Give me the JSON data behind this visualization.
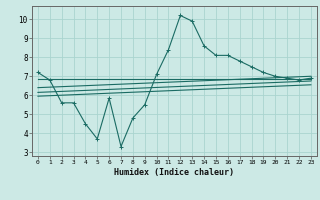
{
  "title": "",
  "xlabel": "Humidex (Indice chaleur)",
  "ylabel": "",
  "bg_color": "#cce9e5",
  "grid_color": "#aad4cf",
  "line_color": "#1a6b63",
  "xlim": [
    -0.5,
    23.5
  ],
  "ylim": [
    2.8,
    10.7
  ],
  "yticks": [
    3,
    4,
    5,
    6,
    7,
    8,
    9,
    10
  ],
  "xticks": [
    0,
    1,
    2,
    3,
    4,
    5,
    6,
    7,
    8,
    9,
    10,
    11,
    12,
    13,
    14,
    15,
    16,
    17,
    18,
    19,
    20,
    21,
    22,
    23
  ],
  "series": {
    "main": {
      "x": [
        0,
        1,
        2,
        3,
        4,
        5,
        6,
        7,
        8,
        9,
        10,
        11,
        12,
        13,
        14,
        15,
        16,
        17,
        18,
        19,
        20,
        21,
        22,
        23
      ],
      "y": [
        7.2,
        6.8,
        5.6,
        5.6,
        4.5,
        3.7,
        5.85,
        3.3,
        4.8,
        5.5,
        7.1,
        8.4,
        10.2,
        9.9,
        8.6,
        8.1,
        8.1,
        7.8,
        7.5,
        7.2,
        7.0,
        6.9,
        6.8,
        6.9
      ]
    },
    "line1": {
      "x": [
        0,
        23
      ],
      "y": [
        6.85,
        6.85
      ]
    },
    "line2": {
      "x": [
        0,
        23
      ],
      "y": [
        6.4,
        7.0
      ]
    },
    "line3": {
      "x": [
        0,
        23
      ],
      "y": [
        6.15,
        6.75
      ]
    },
    "line4": {
      "x": [
        0,
        23
      ],
      "y": [
        5.95,
        6.55
      ]
    }
  }
}
